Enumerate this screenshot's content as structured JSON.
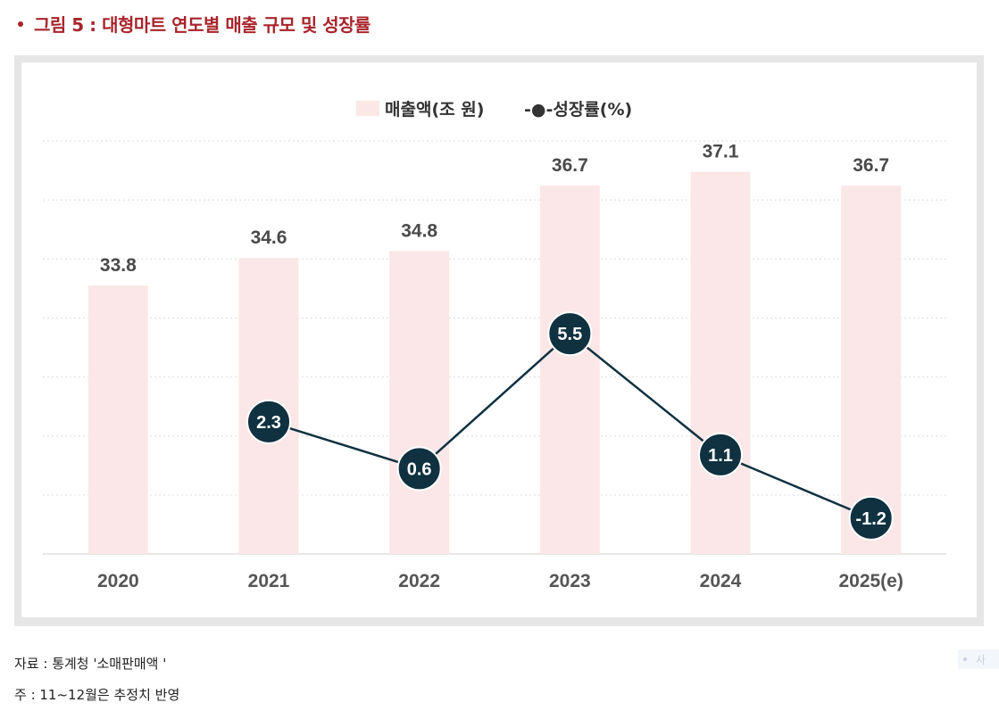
{
  "title": "그림 5 : 대형마트 연도별 매출 규모 및 성장률",
  "chart_data": {
    "type": "bar",
    "categories": [
      "2020",
      "2021",
      "2022",
      "2023",
      "2024",
      "2025(e)"
    ],
    "series": [
      {
        "name": "매출액(조 원)",
        "type": "bar",
        "color": "#fbe7e7",
        "values": [
          33.8,
          34.6,
          34.8,
          36.7,
          37.1,
          36.7
        ]
      },
      {
        "name": "성장률(%)",
        "type": "line",
        "color": "#0f3140",
        "values": [
          null,
          2.3,
          0.6,
          5.5,
          1.1,
          -1.2
        ]
      }
    ],
    "bar_labels": [
      "33.8",
      "34.6",
      "34.8",
      "36.7",
      "37.1",
      "36.7"
    ],
    "line_labels": [
      "",
      "2.3",
      "0.6",
      "5.5",
      "1.1",
      "-1.2"
    ],
    "bar_axis_range": [
      26,
      38
    ],
    "line_axis_range": [
      -2.5,
      12.5
    ],
    "gridlines": true,
    "legend_position": "top-center",
    "legend": [
      "매출액(조 원)",
      "-●-성장률(%)"
    ]
  },
  "notes": {
    "source": "자료 : 통계청 '소매판매액 '",
    "footnote": "주 : 11~12월은 추정치 반영"
  },
  "side_tab": {
    "label": "사"
  }
}
